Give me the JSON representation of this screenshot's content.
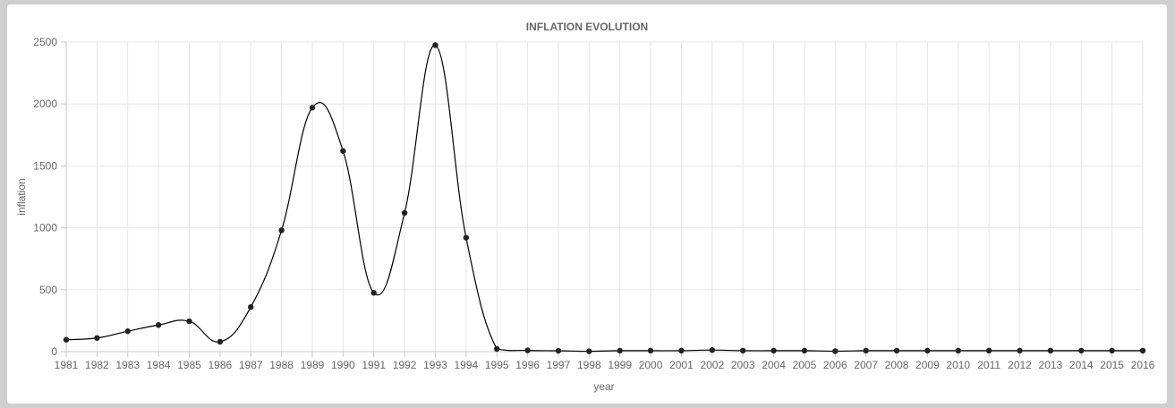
{
  "chart_data": {
    "type": "line",
    "title": "INFLATION EVOLUTION",
    "xlabel": "year",
    "ylabel": "inflation",
    "ylim": [
      0,
      2500
    ],
    "y_ticks": [
      "0",
      "500",
      "1000",
      "1500",
      "2000",
      "2500"
    ],
    "grid": true,
    "legend": "none",
    "line_color": "#000000",
    "point_color": "#222222",
    "categories": [
      "1981",
      "1982",
      "1983",
      "1984",
      "1985",
      "1986",
      "1987",
      "1988",
      "1989",
      "1990",
      "1991",
      "1992",
      "1993",
      "1994",
      "1995",
      "1996",
      "1997",
      "1998",
      "1999",
      "2000",
      "2001",
      "2002",
      "2003",
      "2004",
      "2005",
      "2006",
      "2007",
      "2008",
      "2009",
      "2010",
      "2011",
      "2012",
      "2013",
      "2014",
      "2015",
      "2016"
    ],
    "values": [
      96,
      110,
      165,
      215,
      245,
      80,
      360,
      980,
      1970,
      1620,
      475,
      1120,
      2475,
      920,
      22,
      10,
      7,
      3,
      8,
      8,
      8,
      13,
      8,
      8,
      8,
      4,
      8,
      8,
      8,
      8,
      8,
      8,
      8,
      8,
      8,
      8
    ]
  }
}
